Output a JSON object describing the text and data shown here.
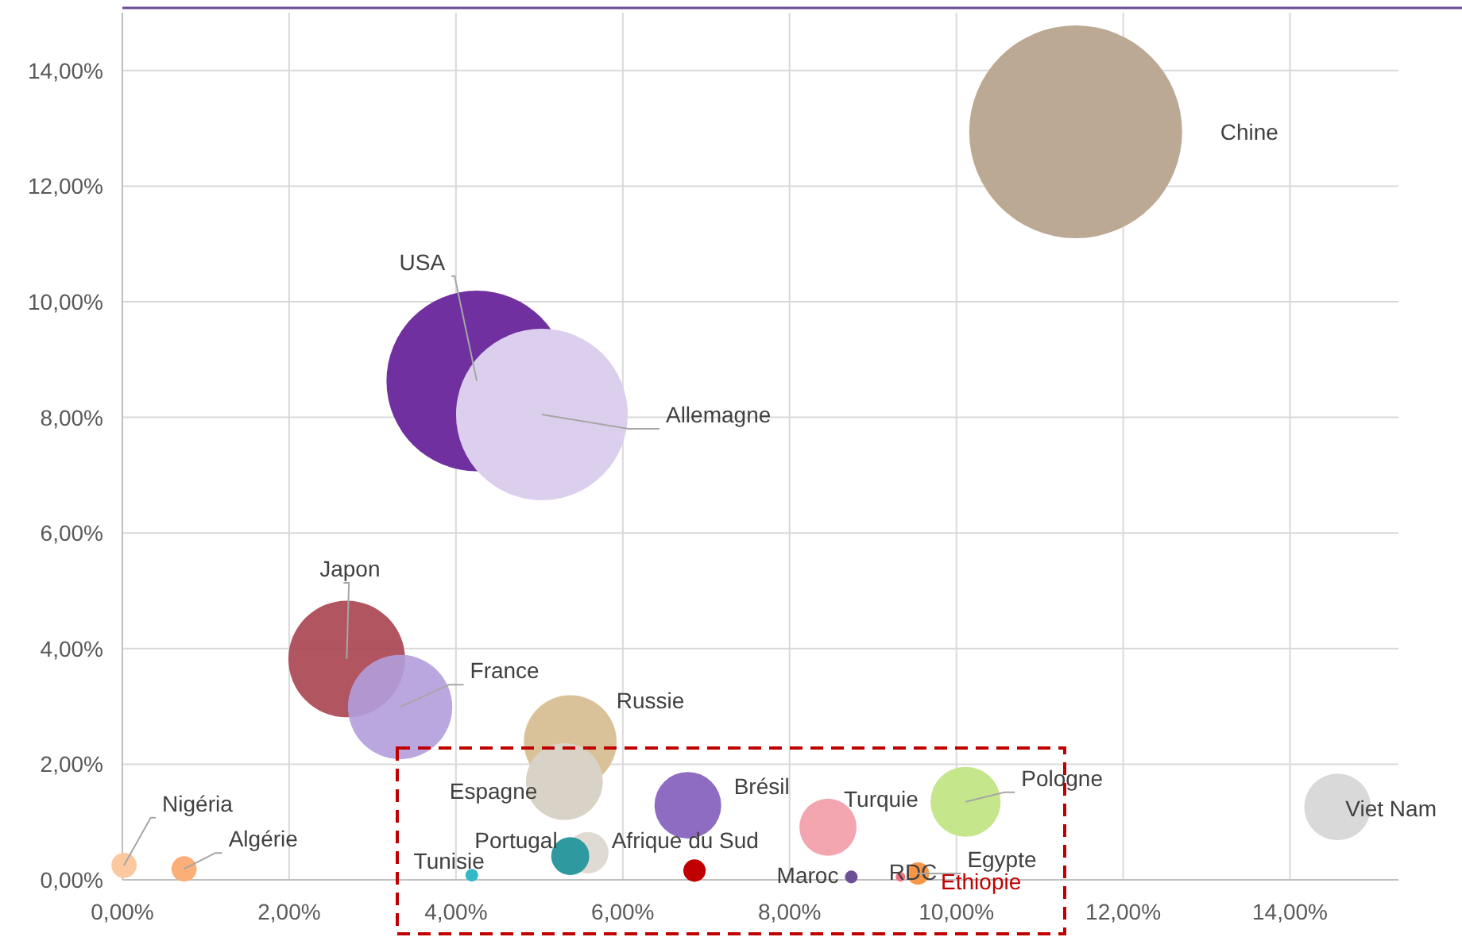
{
  "chart_data": {
    "type": "bubble",
    "xlim": [
      0,
      15.3
    ],
    "ylim": [
      0,
      15
    ],
    "xticks": [
      {
        "value": 0,
        "label": "0,00%"
      },
      {
        "value": 2,
        "label": "2,00%"
      },
      {
        "value": 4,
        "label": "4,00%"
      },
      {
        "value": 6,
        "label": "6,00%"
      },
      {
        "value": 8,
        "label": "8,00%"
      },
      {
        "value": 10,
        "label": "10,00%"
      },
      {
        "value": 12,
        "label": "12,00%"
      },
      {
        "value": 14,
        "label": "14,00%"
      }
    ],
    "yticks": [
      {
        "value": 0,
        "label": "0,00%"
      },
      {
        "value": 2,
        "label": "2,00%"
      },
      {
        "value": 4,
        "label": "4,00%"
      },
      {
        "value": 6,
        "label": "6,00%"
      },
      {
        "value": 8,
        "label": "8,00%"
      },
      {
        "value": 10,
        "label": "10,00%"
      },
      {
        "value": 12,
        "label": "12,00%"
      },
      {
        "value": 14,
        "label": "14,00%"
      }
    ],
    "grid": true,
    "legend": false,
    "series": [
      {
        "name": "Chine",
        "color": "#bba994",
        "x": [
          11.43
        ],
        "values": [
          12.94
        ],
        "sizes": [
          1
        ]
      },
      {
        "name": "USA",
        "color": "#7030a0",
        "x": [
          4.25
        ],
        "values": [
          8.63
        ],
        "sizes": [
          0.72
        ]
      },
      {
        "name": "Allemagne",
        "color": "#dccfee",
        "x": [
          5.03
        ],
        "values": [
          8.05
        ],
        "sizes": [
          0.65
        ]
      },
      {
        "name": "Japon",
        "color": "#a8434f",
        "x": [
          2.69
        ],
        "values": [
          3.82
        ],
        "sizes": [
          0.3
        ]
      },
      {
        "name": "France",
        "color": "#b39ddb",
        "x": [
          3.33
        ],
        "values": [
          2.99
        ],
        "sizes": [
          0.24
        ]
      },
      {
        "name": "Russie",
        "color": "#d9c29a",
        "x": [
          5.37
        ],
        "values": [
          2.39
        ],
        "sizes": [
          0.19
        ]
      },
      {
        "name": "Espagne",
        "color": "#d9d3c7",
        "x": [
          5.3
        ],
        "values": [
          1.7
        ],
        "sizes": [
          0.13
        ]
      },
      {
        "name": "Brésil",
        "color": "#8e6cc2",
        "x": [
          6.78
        ],
        "values": [
          1.29
        ],
        "sizes": [
          0.098
        ]
      },
      {
        "name": "Turquie",
        "color": "#f4a6b0",
        "x": [
          8.46
        ],
        "values": [
          0.91
        ],
        "sizes": [
          0.072
        ]
      },
      {
        "name": "Pologne",
        "color": "#c5e68a",
        "x": [
          10.11
        ],
        "values": [
          1.35
        ],
        "sizes": [
          0.108
        ]
      },
      {
        "name": "Viet Nam",
        "color": "#d9d9d9",
        "x": [
          14.57
        ],
        "values": [
          1.26
        ],
        "sizes": [
          0.098
        ]
      },
      {
        "name": "Afrique du Sud",
        "color": "#e0dbd2",
        "x": [
          5.58
        ],
        "values": [
          0.47
        ],
        "sizes": [
          0.038
        ]
      },
      {
        "name": "Portugal",
        "color": "#2e9aa0",
        "x": [
          5.37
        ],
        "values": [
          0.41
        ],
        "sizes": [
          0.032
        ]
      },
      {
        "name": "Tunisie",
        "color": "#33b8c8",
        "x": [
          4.19
        ],
        "values": [
          0.08
        ],
        "sizes": [
          0.0036
        ]
      },
      {
        "name": "Ethiopie",
        "color": "#c00000",
        "x": [
          6.86
        ],
        "values": [
          0.16
        ],
        "sizes": [
          0.011
        ]
      },
      {
        "name": "Maroc",
        "color": "#6e4f96",
        "x": [
          8.74
        ],
        "values": [
          0.05
        ],
        "sizes": [
          0.0036
        ]
      },
      {
        "name": "RDC",
        "color": "#f07080",
        "x": [
          9.33
        ],
        "values": [
          0.05
        ],
        "sizes": [
          0.002
        ]
      },
      {
        "name": "Egypte",
        "color": "#f79646",
        "x": [
          9.54
        ],
        "values": [
          0.11
        ],
        "sizes": [
          0.011
        ]
      },
      {
        "name": "Nigéria",
        "color": "#fcc8a0",
        "x": [
          0.02
        ],
        "values": [
          0.25
        ],
        "sizes": [
          0.014
        ]
      },
      {
        "name": "Algérie",
        "color": "#fcae78",
        "x": [
          0.74
        ],
        "values": [
          0.19
        ],
        "sizes": [
          0.014
        ]
      }
    ]
  }
}
